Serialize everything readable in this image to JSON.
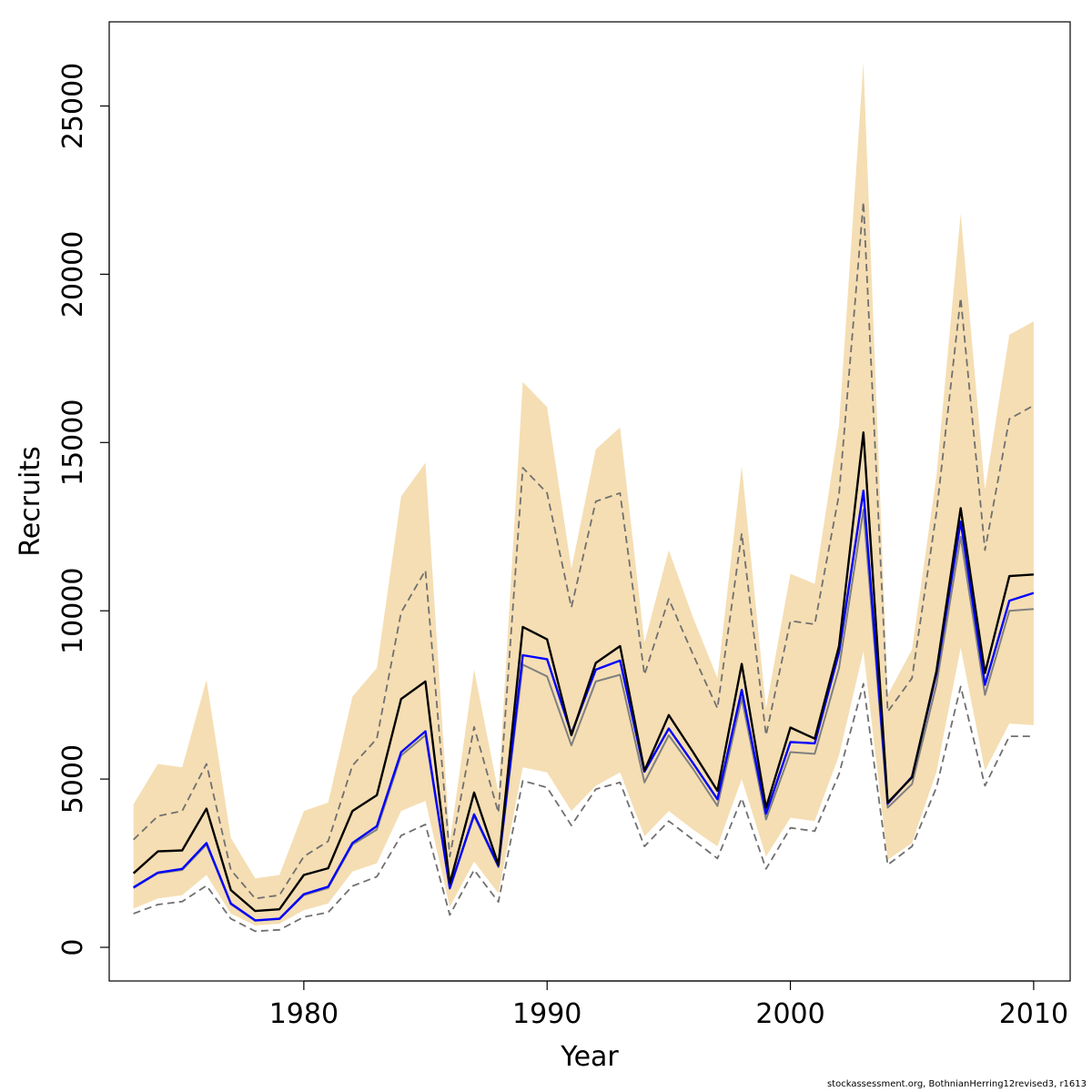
{
  "chart_data": {
    "type": "line",
    "xlabel": "Year",
    "ylabel": "Recruits",
    "xlim": [
      1972,
      2011.5
    ],
    "ylim": [
      -1000,
      27500
    ],
    "x_ticks": [
      1980,
      1990,
      2000,
      2010
    ],
    "y_ticks": [
      0,
      5000,
      10000,
      15000,
      20000,
      25000
    ],
    "grid": false,
    "legend": "none",
    "x": [
      1973,
      1974,
      1975,
      1976,
      1977,
      1978,
      1979,
      1980,
      1981,
      1982,
      1983,
      1984,
      1985,
      1986,
      1987,
      1988,
      1989,
      1990,
      1991,
      1992,
      1993,
      1994,
      1995,
      1996,
      1997,
      1998,
      1999,
      2000,
      2001,
      2002,
      2003,
      2004,
      2005,
      2006,
      2007,
      2008,
      2009,
      2010
    ],
    "band": {
      "color": "#f5deb3",
      "upper": [
        4250,
        5450,
        5350,
        7950,
        3250,
        2050,
        2150,
        4050,
        4300,
        7450,
        8300,
        13400,
        14400,
        3150,
        8250,
        4600,
        16800,
        16050,
        11250,
        14800,
        15450,
        9050,
        11800,
        9800,
        8000,
        14300,
        7100,
        11100,
        10800,
        15500,
        26300,
        7500,
        8850,
        14000,
        21800,
        13600,
        18200,
        18600
      ],
      "lower": [
        1150,
        1450,
        1550,
        2150,
        1000,
        650,
        700,
        1100,
        1300,
        2250,
        2500,
        4050,
        4350,
        1200,
        2550,
        1600,
        5350,
        5200,
        4050,
        4800,
        5200,
        3300,
        4050,
        3500,
        3000,
        5000,
        2700,
        3850,
        3750,
        5700,
        8800,
        2600,
        3100,
        5200,
        8900,
        5250,
        6650,
        6600
      ]
    },
    "series": [
      {
        "color": "#000000",
        "style": "solid",
        "width": 2.4,
        "values": [
          2200,
          2850,
          2880,
          4120,
          1700,
          1080,
          1130,
          2150,
          2350,
          4050,
          4520,
          7380,
          7900,
          1900,
          4600,
          2450,
          9520,
          9150,
          6300,
          8450,
          8950,
          5250,
          6900,
          5800,
          4650,
          8420,
          4150,
          6530,
          6200,
          8950,
          15300,
          4300,
          5050,
          8200,
          13050,
          8150,
          11030,
          11080
        ]
      },
      {
        "color": "#0000ff",
        "style": "solid",
        "width": 2.4,
        "values": [
          1780,
          2220,
          2330,
          3100,
          1300,
          800,
          850,
          1580,
          1800,
          3100,
          3600,
          5800,
          6420,
          1760,
          3950,
          2420,
          8680,
          8560,
          6350,
          8250,
          8520,
          5220,
          6500,
          5470,
          4400,
          7650,
          3970,
          6100,
          6060,
          8760,
          13570,
          4270,
          5070,
          8130,
          12650,
          7800,
          10300,
          10530
        ]
      },
      {
        "color": "#808080",
        "style": "solid",
        "width": 2.0,
        "values": [
          1760,
          2200,
          2300,
          3050,
          1280,
          790,
          840,
          1550,
          1760,
          3050,
          3500,
          5700,
          6300,
          1740,
          3900,
          2380,
          8400,
          8050,
          6000,
          7900,
          8100,
          4900,
          6300,
          5300,
          4200,
          7400,
          3800,
          5800,
          5750,
          8300,
          13000,
          4150,
          4850,
          7800,
          12200,
          7500,
          10000,
          10050
        ]
      },
      {
        "color": "#707070",
        "style": "dashed",
        "width": 1.8,
        "values": [
          3200,
          3900,
          4050,
          5450,
          2300,
          1450,
          1550,
          2700,
          3150,
          5400,
          6200,
          9950,
          11200,
          2700,
          6550,
          4000,
          14250,
          13500,
          10100,
          13250,
          13500,
          8100,
          10350,
          8700,
          7100,
          12300,
          6300,
          9700,
          9600,
          13450,
          22150,
          7000,
          8000,
          12900,
          19300,
          11800,
          15700,
          16100
        ]
      },
      {
        "color": "#707070",
        "style": "dashed",
        "width": 1.8,
        "values": [
          1000,
          1270,
          1360,
          1830,
          850,
          480,
          520,
          900,
          1040,
          1820,
          2100,
          3320,
          3650,
          960,
          2300,
          1350,
          4950,
          4750,
          3620,
          4700,
          4900,
          3000,
          3750,
          3200,
          2640,
          4430,
          2330,
          3550,
          3450,
          5150,
          7830,
          2450,
          3000,
          4750,
          7750,
          4800,
          6270,
          6270
        ]
      }
    ]
  },
  "credit": "stockassessment.org, BothnianHerring12revised3, r1613"
}
